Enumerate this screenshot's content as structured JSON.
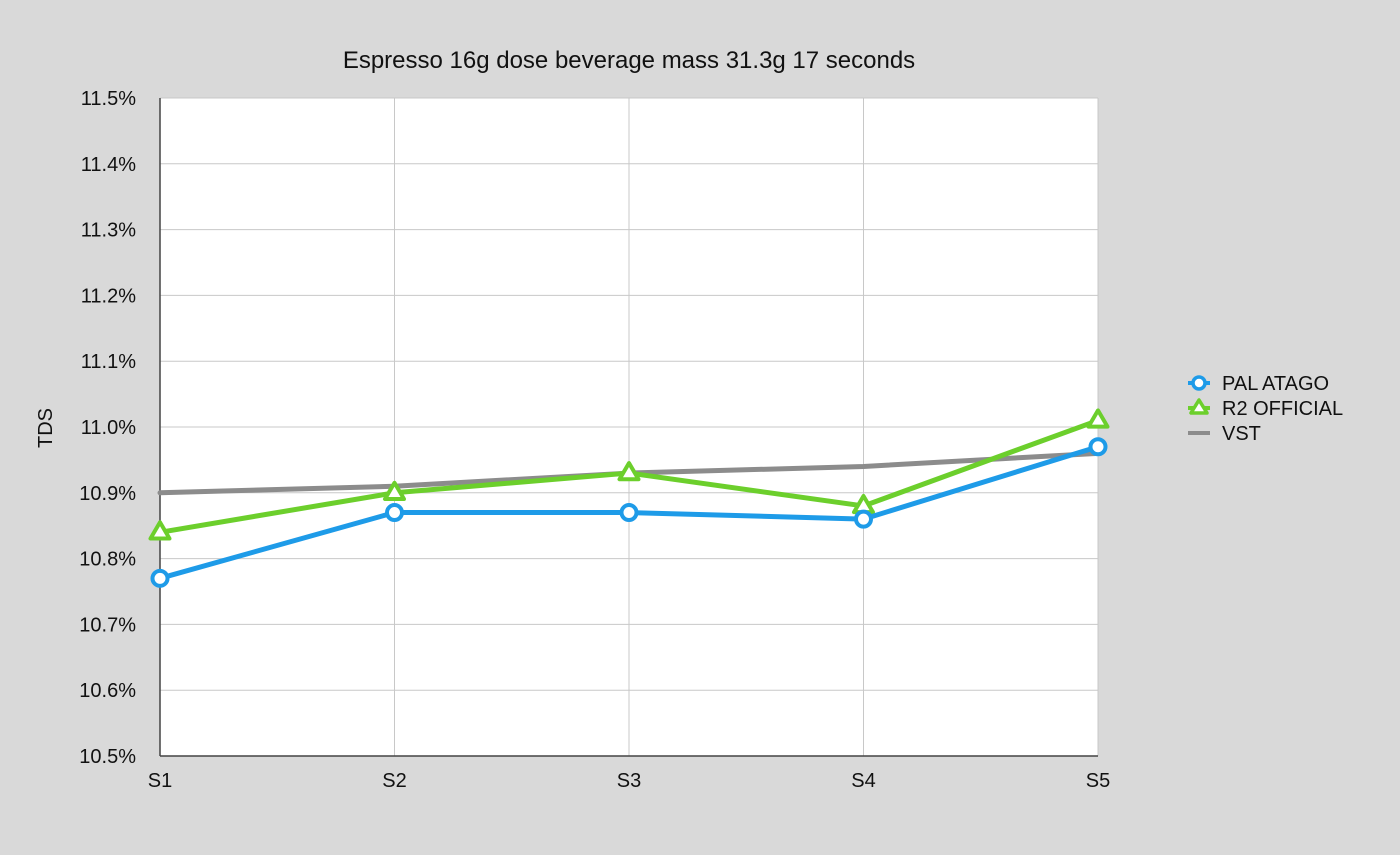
{
  "chart_data": {
    "type": "line",
    "title": "Espresso 16g dose beverage mass 31.3g 17 seconds",
    "xlabel": "",
    "ylabel": "TDS",
    "categories": [
      "S1",
      "S2",
      "S3",
      "S4",
      "S5"
    ],
    "ylim": [
      10.5,
      11.5
    ],
    "yticks": [
      "10.5%",
      "10.6%",
      "10.7%",
      "10.8%",
      "10.9%",
      "11.0%",
      "11.1%",
      "11.2%",
      "11.3%",
      "11.4%",
      "11.5%"
    ],
    "grid": true,
    "legend_position": "right",
    "series": [
      {
        "name": "PAL ATAGO",
        "color": "#1e9be8",
        "marker": "circle",
        "values": [
          10.77,
          10.87,
          10.87,
          10.86,
          10.97
        ]
      },
      {
        "name": "R2 OFFICIAL",
        "color": "#6ccf2c",
        "marker": "triangle",
        "values": [
          10.84,
          10.9,
          10.93,
          10.88,
          11.01
        ]
      },
      {
        "name": "VST",
        "color": "#8c8c8c",
        "marker": "none",
        "values": [
          10.9,
          10.91,
          10.93,
          10.94,
          10.96
        ]
      }
    ]
  }
}
